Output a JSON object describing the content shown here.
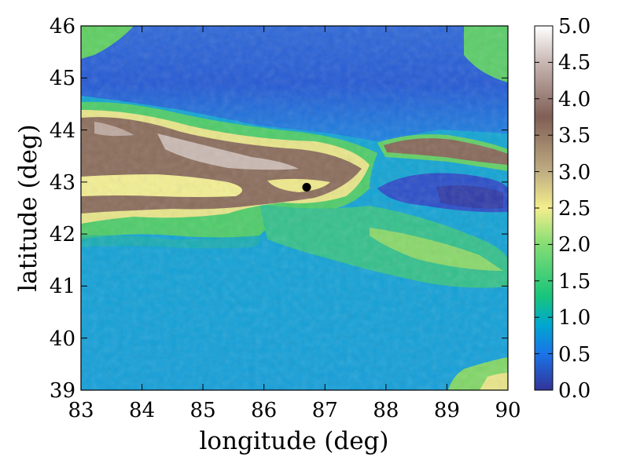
{
  "map": {
    "type": "heatmap",
    "xlabel": "longitude (deg)",
    "ylabel": "latitude (deg)",
    "xlim": [
      83,
      90
    ],
    "ylim": [
      39,
      46
    ],
    "xticks": [
      "83",
      "84",
      "85",
      "86",
      "87",
      "88",
      "89",
      "90"
    ],
    "yticks": [
      "39",
      "40",
      "41",
      "42",
      "43",
      "44",
      "45",
      "46"
    ],
    "colormap": "terrain",
    "colorbar": {
      "range": [
        0.0,
        5.0
      ],
      "ticks": [
        "0.0",
        "0.5",
        "1.0",
        "1.5",
        "2.0",
        "2.5",
        "3.0",
        "3.5",
        "4.0",
        "4.5",
        "5.0"
      ]
    },
    "marker": {
      "lon": 86.7,
      "lat": 42.9,
      "color": "#000000"
    },
    "colors": {
      "deep_blue": "#3434a8",
      "blue": "#1a78e6",
      "sky": "#0aa3d8",
      "teal": "#18b58c",
      "green": "#5fd061",
      "yellow": "#f2ee8d",
      "tan": "#b39b77",
      "brown": "#84685a",
      "white": "#ffffff"
    }
  }
}
